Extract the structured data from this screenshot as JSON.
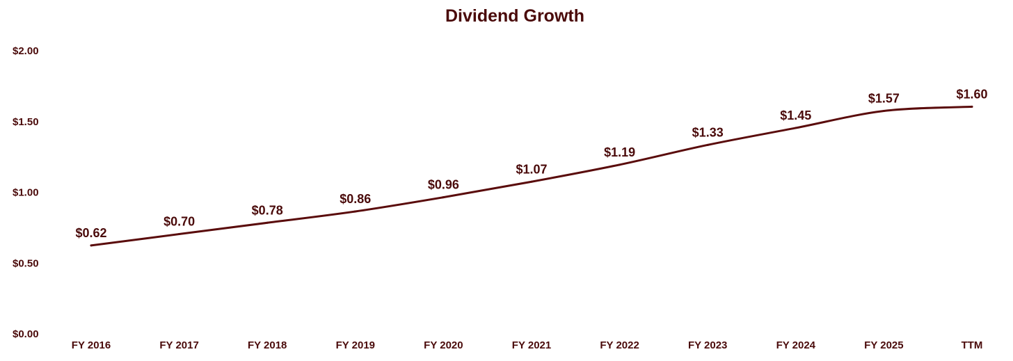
{
  "chart_data": {
    "type": "line",
    "title": "Dividend Growth",
    "xlabel": "",
    "ylabel": "",
    "categories": [
      "FY 2016",
      "FY 2017",
      "FY 2018",
      "FY 2019",
      "FY 2020",
      "FY 2021",
      "FY 2022",
      "FY 2023",
      "FY 2024",
      "FY 2025",
      "TTM"
    ],
    "series": [
      {
        "values": [
          0.62,
          0.7,
          0.78,
          0.86,
          0.96,
          1.07,
          1.19,
          1.33,
          1.45,
          1.57,
          1.6
        ],
        "data_labels": [
          "$0.62",
          "$0.70",
          "$0.78",
          "$0.86",
          "$0.96",
          "$1.07",
          "$1.19",
          "$1.33",
          "$1.45",
          "$1.57",
          "$1.60"
        ]
      }
    ],
    "yticks": [
      0,
      0.5,
      1.0,
      1.5,
      2.0
    ],
    "ytick_labels": [
      "$0.00",
      "$0.50",
      "$1.00",
      "$1.50",
      "$2.00"
    ],
    "ylim": [
      0,
      2.0
    ],
    "grid": false,
    "legend": "none",
    "colors": {
      "line": "#5a0c0c",
      "text": "#4a0a0a"
    }
  }
}
